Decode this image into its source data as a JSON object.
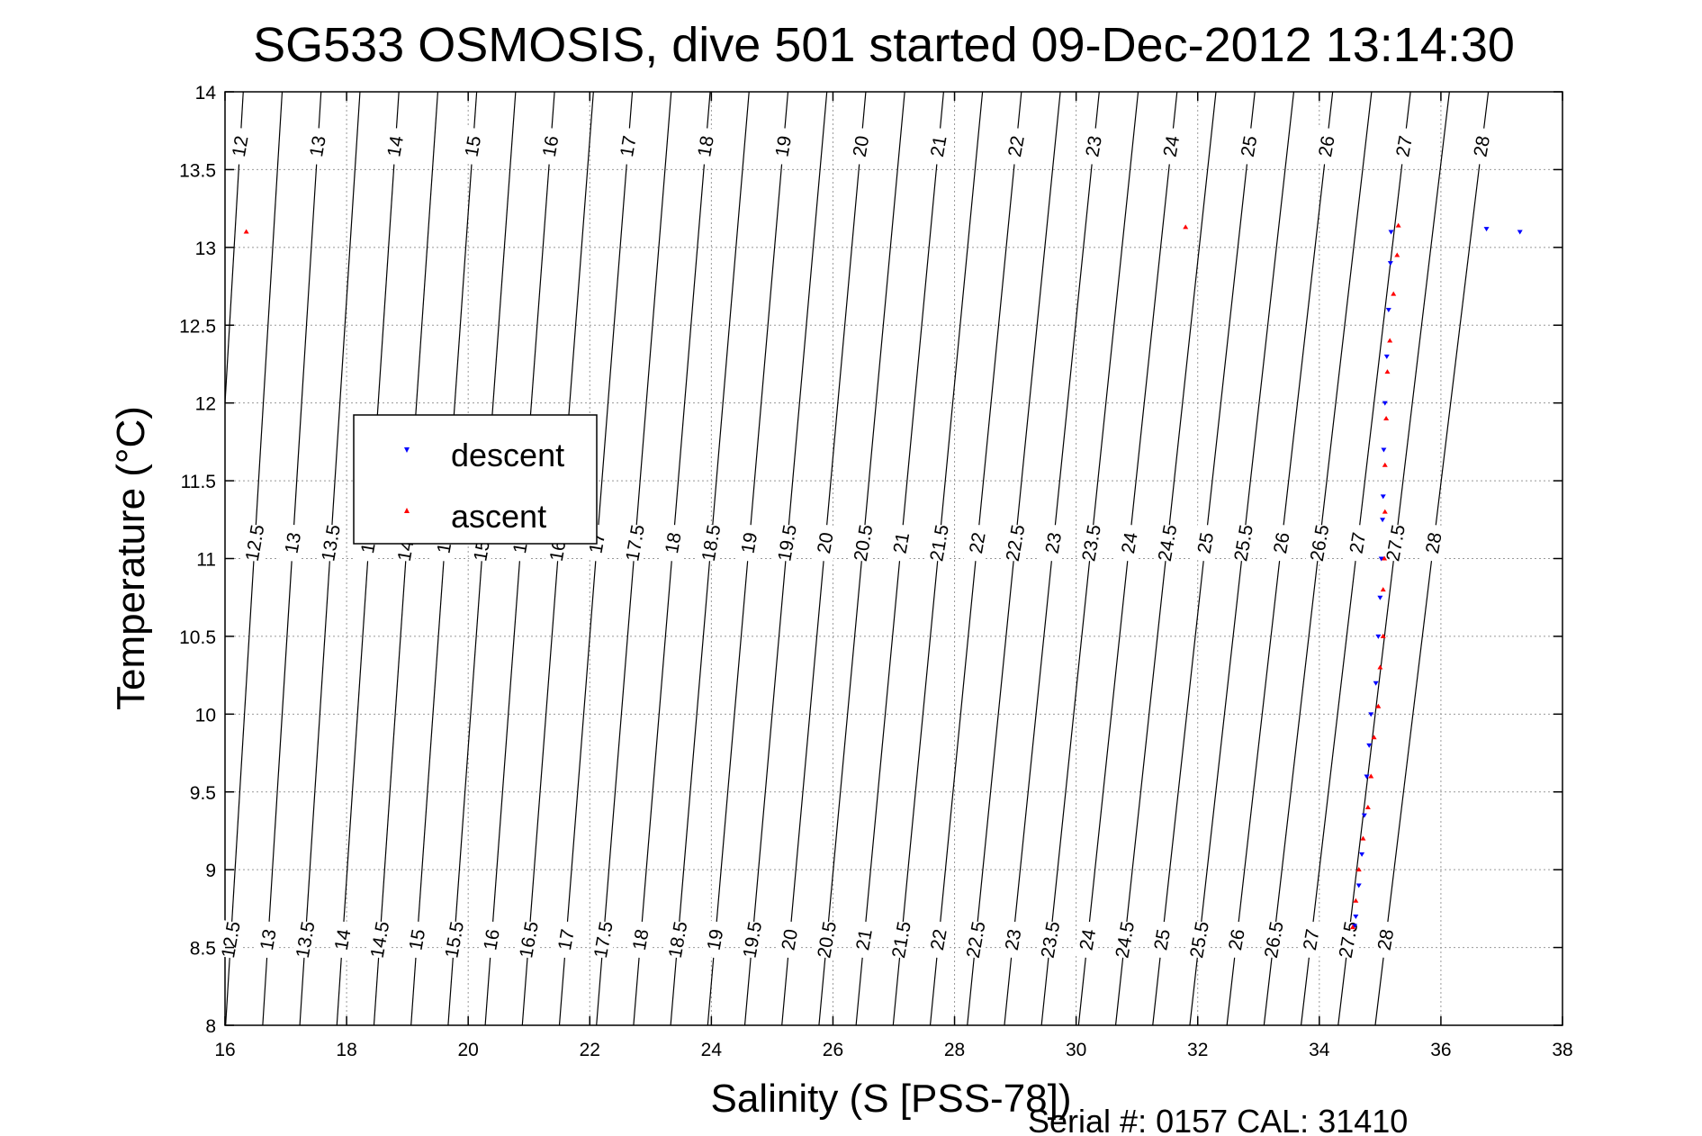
{
  "chart_data": {
    "type": "scatter",
    "title": "SG533 OSMOSIS, dive 501 started 09-Dec-2012 13:14:30",
    "xlabel": "Salinity (S [PSS-78])",
    "ylabel": "Temperature (°C)",
    "xlim": [
      16,
      38
    ],
    "ylim": [
      8,
      14
    ],
    "xticks": [
      16,
      18,
      20,
      22,
      24,
      26,
      28,
      30,
      32,
      34,
      36,
      38
    ],
    "yticks": [
      8,
      8.5,
      9,
      9.5,
      10,
      10.5,
      11,
      11.5,
      12,
      12.5,
      13,
      13.5,
      14
    ],
    "grid": true,
    "legend_position": "middle-left",
    "footer": "Serial #: 0157  CAL: 31410",
    "density_contours": {
      "top_labels": [
        "12",
        "13",
        "14",
        "15",
        "16",
        "17",
        "18",
        "19",
        "20",
        "21",
        "22",
        "23",
        "24",
        "25",
        "26",
        "27",
        "28"
      ],
      "middle_labels": [
        "12.5",
        "13",
        "13.5",
        "14",
        "14.5",
        "15",
        "15.5",
        "16",
        "16.5",
        "17",
        "17.5",
        "18",
        "18.5",
        "19",
        "19.5",
        "20",
        "20.5",
        "21",
        "21.5",
        "22",
        "22.5",
        "23",
        "23.5",
        "24",
        "24.5",
        "25",
        "25.5",
        "26",
        "26.5",
        "27",
        "27.5",
        "28"
      ],
      "bottom_labels": [
        "12.5",
        "13",
        "13.5",
        "14",
        "14.5",
        "15",
        "15.5",
        "16",
        "16.5",
        "17",
        "17.5",
        "18",
        "18.5",
        "19",
        "19.5",
        "20",
        "20.5",
        "21",
        "21.5",
        "22",
        "22.5",
        "23",
        "23.5",
        "24",
        "24.5",
        "25",
        "25.5",
        "26",
        "26.5",
        "27",
        "27.5",
        "28"
      ]
    },
    "series": [
      {
        "name": "descent",
        "color": "#0000ff",
        "marker": "triangle-down",
        "points": [
          [
            36.75,
            13.12
          ],
          [
            37.3,
            13.1
          ],
          [
            35.18,
            13.1
          ],
          [
            35.17,
            12.9
          ],
          [
            35.14,
            12.6
          ],
          [
            35.11,
            12.3
          ],
          [
            35.08,
            12.0
          ],
          [
            35.06,
            11.7
          ],
          [
            35.05,
            11.4
          ],
          [
            35.04,
            11.25
          ],
          [
            35.02,
            11.0
          ],
          [
            35.0,
            10.75
          ],
          [
            34.97,
            10.5
          ],
          [
            34.93,
            10.2
          ],
          [
            34.85,
            10.0
          ],
          [
            34.82,
            9.8
          ],
          [
            34.78,
            9.6
          ],
          [
            34.74,
            9.35
          ],
          [
            34.7,
            9.1
          ],
          [
            34.65,
            8.9
          ],
          [
            34.6,
            8.7
          ],
          [
            34.58,
            8.64
          ]
        ]
      },
      {
        "name": "ascent",
        "color": "#ff0000",
        "marker": "triangle-up",
        "points": [
          [
            16.35,
            13.1
          ],
          [
            31.8,
            13.13
          ],
          [
            35.3,
            13.14
          ],
          [
            35.28,
            12.95
          ],
          [
            35.22,
            12.7
          ],
          [
            35.16,
            12.4
          ],
          [
            35.12,
            12.2
          ],
          [
            35.1,
            11.9
          ],
          [
            35.08,
            11.6
          ],
          [
            35.08,
            11.3
          ],
          [
            35.07,
            11.0
          ],
          [
            35.05,
            10.8
          ],
          [
            35.05,
            10.5
          ],
          [
            35.0,
            10.3
          ],
          [
            34.97,
            10.05
          ],
          [
            34.9,
            9.85
          ],
          [
            34.85,
            9.6
          ],
          [
            34.8,
            9.4
          ],
          [
            34.72,
            9.2
          ],
          [
            34.65,
            9.0
          ],
          [
            34.6,
            8.8
          ],
          [
            34.55,
            8.63
          ]
        ]
      }
    ]
  }
}
